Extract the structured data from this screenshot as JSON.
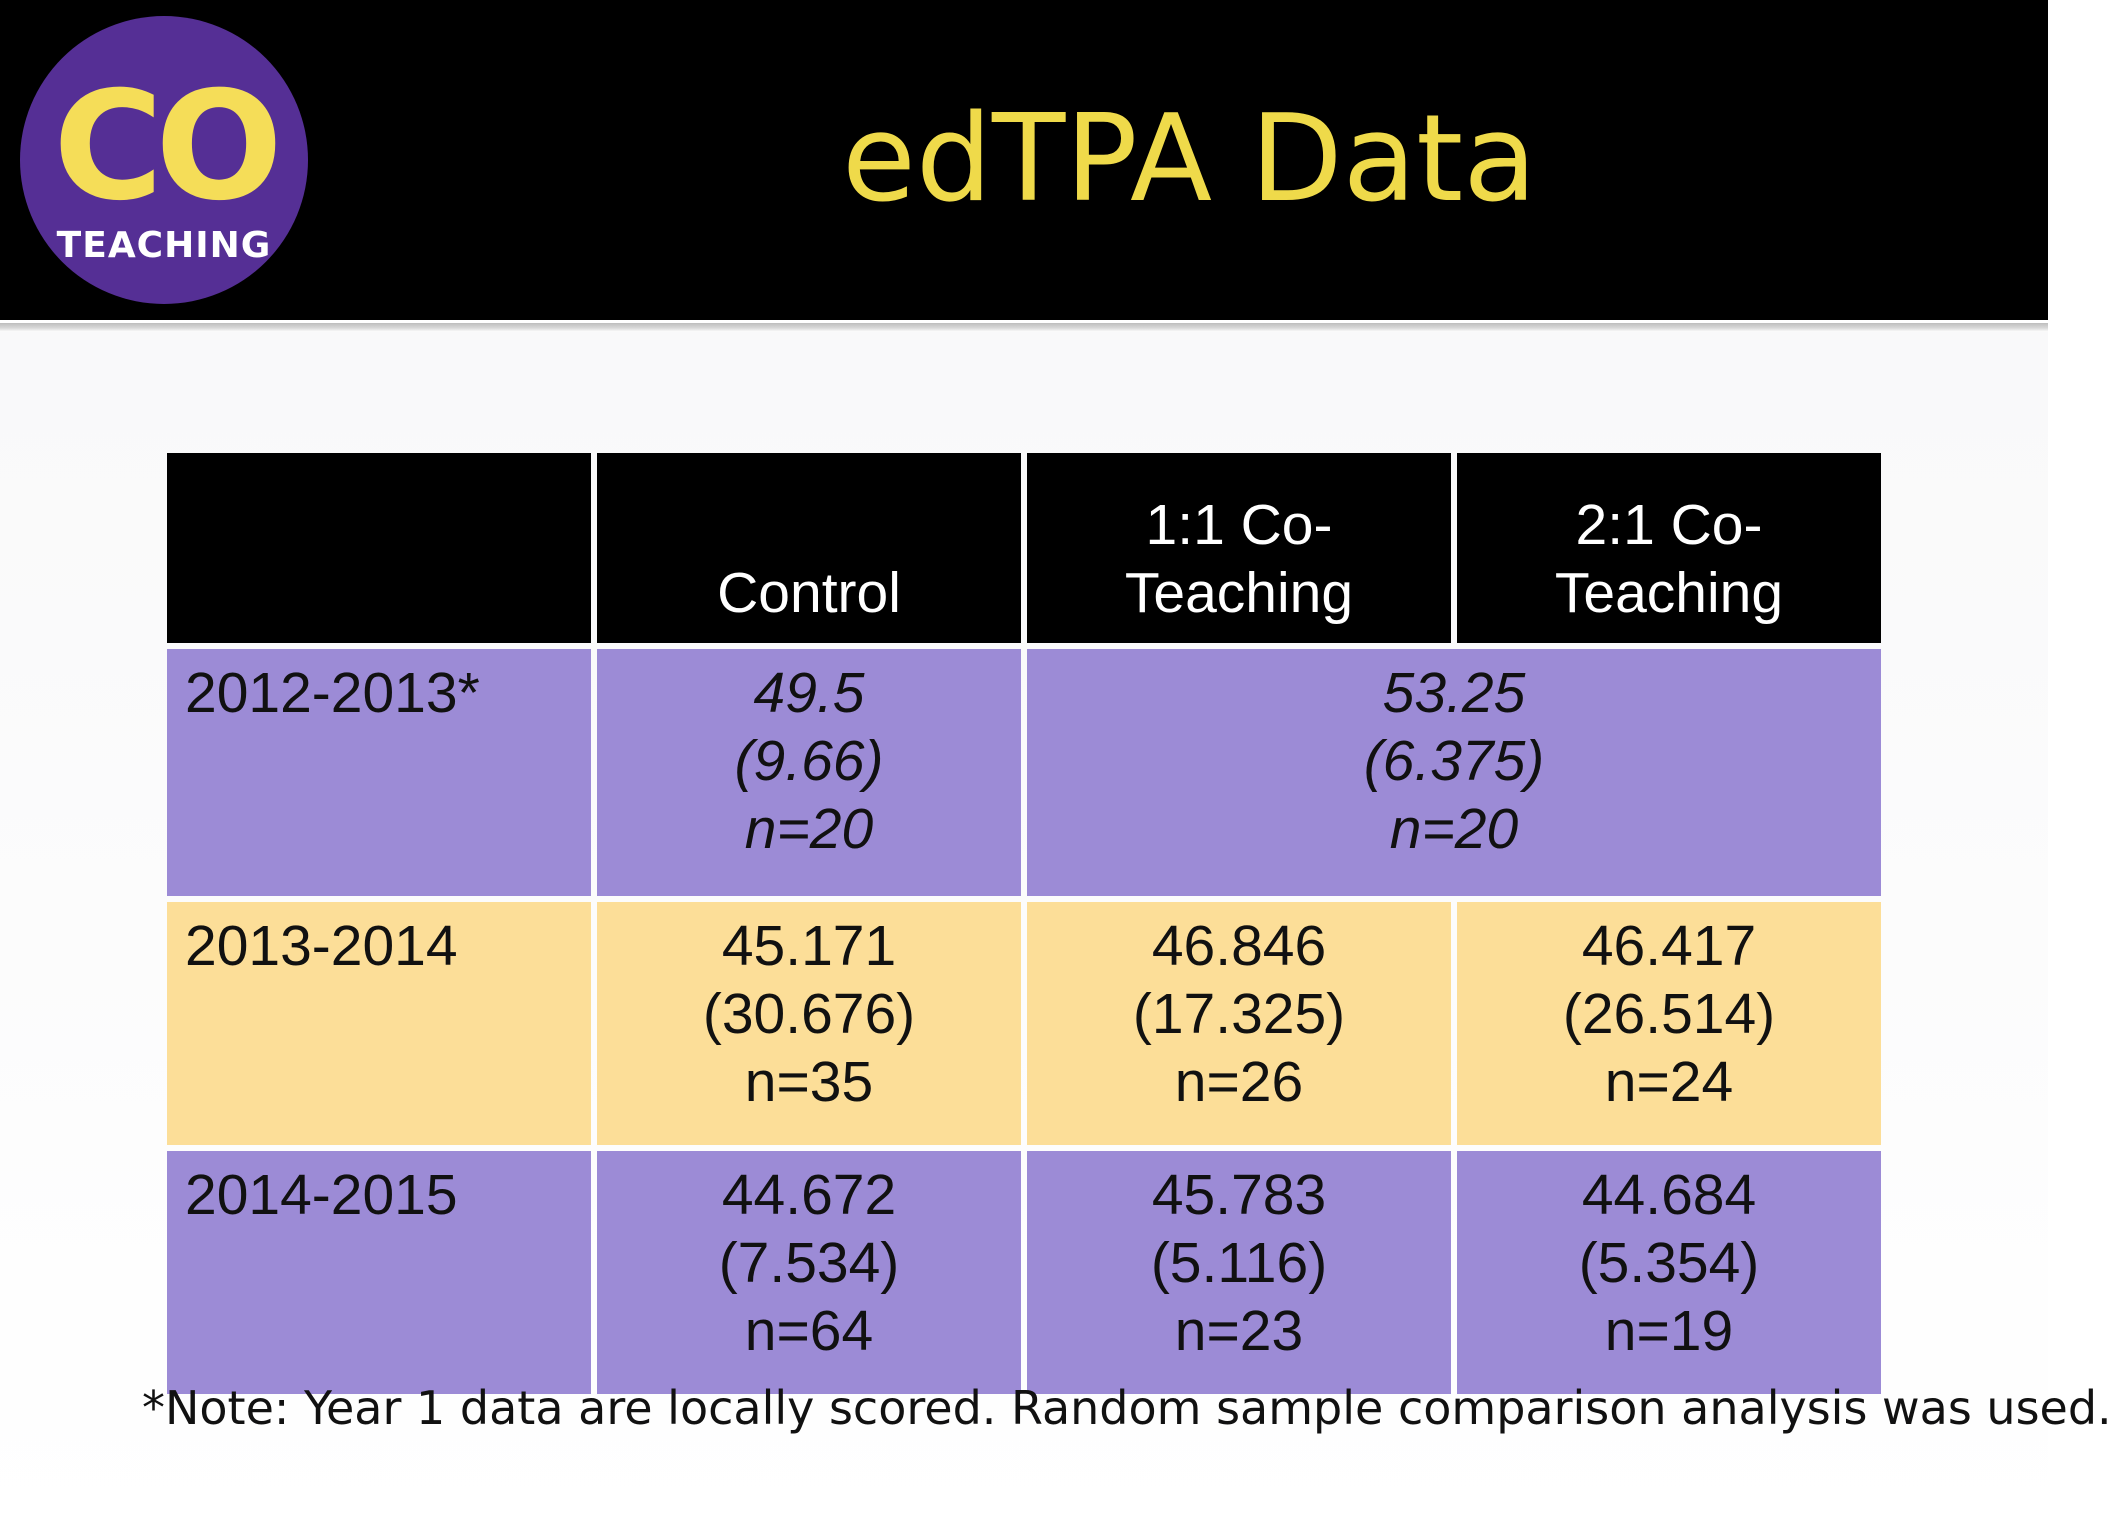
{
  "logo": {
    "main_text": "CO",
    "sub_text": "TEACHING",
    "circle_color": "#552f95",
    "text_color": "#f5dd58"
  },
  "title": "edTPA Data",
  "table": {
    "headers": [
      "",
      "Control",
      "1:1 Co-Teaching",
      "2:1 Co-Teaching"
    ],
    "header_lines": [
      [
        ""
      ],
      [
        "Control"
      ],
      [
        "1:1 Co-",
        "Teaching"
      ],
      [
        "2:1 Co-",
        "Teaching"
      ]
    ],
    "rows": [
      {
        "year": "2012-2013*",
        "cells": [
          {
            "lines": [
              "49.5",
              "(9.66)",
              "n=20"
            ],
            "colspan": 1
          },
          {
            "lines": [
              "53.25",
              "(6.375)",
              "n=20"
            ],
            "colspan": 2
          }
        ]
      },
      {
        "year": "2013-2014",
        "cells": [
          {
            "lines": [
              "45.171",
              "(30.676)",
              "n=35"
            ],
            "colspan": 1
          },
          {
            "lines": [
              "46.846",
              "(17.325)",
              "n=26"
            ],
            "colspan": 1
          },
          {
            "lines": [
              "46.417",
              "(26.514)",
              "n=24"
            ],
            "colspan": 1
          }
        ]
      },
      {
        "year": "2014-2015",
        "cells": [
          {
            "lines": [
              "44.672",
              "(7.534)",
              "n=64"
            ],
            "colspan": 1
          },
          {
            "lines": [
              "45.783",
              "(5.116)",
              "n=23"
            ],
            "colspan": 1
          },
          {
            "lines": [
              "44.684",
              "(5.354)",
              "n=19"
            ],
            "colspan": 1
          }
        ]
      }
    ],
    "colors": {
      "header_bg": "#000000",
      "purple_row": "#9c8bd6",
      "yellow_row": "#fcde98"
    }
  },
  "note": "*Note: Year 1 data are locally scored. Random sample comparison analysis was used.",
  "colors": {
    "title": "#efda4a",
    "header_bar": "#000000"
  }
}
